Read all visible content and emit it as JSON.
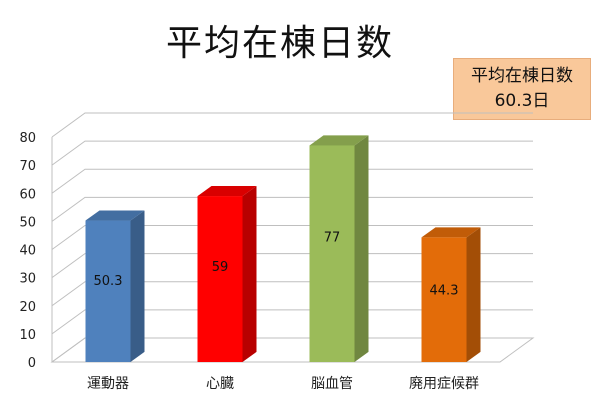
{
  "chart_data": {
    "type": "bar",
    "title": "平均在棟日数",
    "categories": [
      "運動器",
      "心臓",
      "脳血管",
      "廃用症候群"
    ],
    "values": [
      50.3,
      59,
      77,
      44.3
    ],
    "value_labels": [
      "50.3",
      "59",
      "77",
      "44.3"
    ],
    "colors": [
      "#4f81bd",
      "#ff0000",
      "#9bbb59",
      "#e36c09"
    ],
    "ylim": [
      0,
      80
    ],
    "yticks": [
      "0",
      "10",
      "20",
      "30",
      "40",
      "50",
      "60",
      "70",
      "80"
    ],
    "grid": true,
    "annotation": {
      "line1": "平均在棟日数",
      "line2": "60.3日"
    }
  }
}
